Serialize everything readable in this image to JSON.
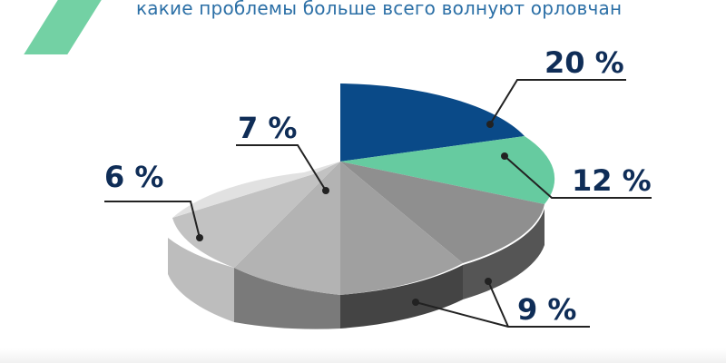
{
  "header": {
    "title": "какие проблемы больше всего волнуют орловчан"
  },
  "colors": {
    "accent": "#73d1a4",
    "navy": "#0a4a88",
    "green": "#66cba0",
    "text_dark": "#0f2d57",
    "title_blue": "#2b6fa6"
  },
  "chart_data": {
    "type": "pie",
    "title": "какие проблемы больше всего волнуют орловчан",
    "slices": [
      {
        "label": "20 %",
        "value": 20,
        "color": "#0a4a88"
      },
      {
        "label": "12 %",
        "value": 12,
        "color": "#66cba0"
      },
      {
        "label": "",
        "value": 9,
        "color": "#8f8f8f"
      },
      {
        "label": "9 %",
        "value": 9,
        "color": "#a0a0a0"
      },
      {
        "label": "",
        "value": 9,
        "color": "#b3b3b3"
      },
      {
        "label": "7 %",
        "value": 7,
        "color": "#c2c2c2"
      },
      {
        "label": "6 %",
        "value": 6,
        "color": "#e1e1e1"
      }
    ]
  }
}
